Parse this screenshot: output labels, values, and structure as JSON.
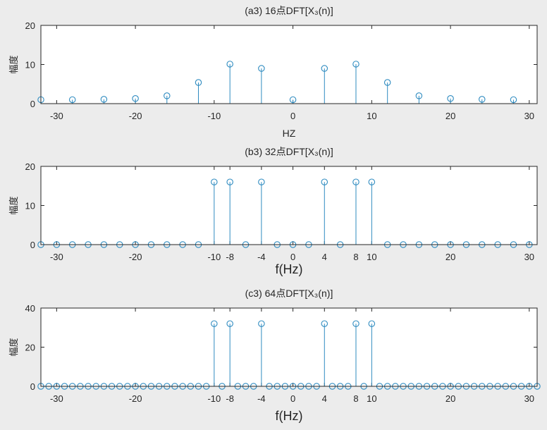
{
  "chart_data": [
    {
      "type": "stem",
      "title": "(a3)  16点DFT[X₃(n)]",
      "xlabel": "HZ",
      "ylabel": "幅度",
      "xlim": [
        -32,
        31
      ],
      "ylim": [
        0,
        20
      ],
      "yticks": [
        "0",
        "10",
        "20"
      ],
      "xticks": [
        "-30",
        "-20",
        "-10",
        "0",
        "10",
        "20",
        "30"
      ],
      "x": [
        -32,
        -28,
        -24,
        -20,
        -16,
        -12,
        -8,
        -4,
        0,
        4,
        8,
        12,
        16,
        20,
        24,
        28
      ],
      "y": [
        1.0,
        1.0,
        1.1,
        1.3,
        2.0,
        5.4,
        10.1,
        9.0,
        1.0,
        9.0,
        10.1,
        5.4,
        2.0,
        1.3,
        1.1,
        1.0
      ],
      "color": "#2e8bc0"
    },
    {
      "type": "stem",
      "title": "(b3)  32点DFT[X₃(n)]",
      "xlabel": "f(Hz)",
      "ylabel": "幅度",
      "xlim": [
        -32,
        31
      ],
      "ylim": [
        0,
        20
      ],
      "yticks": [
        "0",
        "10",
        "20"
      ],
      "xticks": [
        "-30",
        "-20",
        "-10",
        "-8",
        "-4",
        "0",
        "4",
        "8",
        "10",
        "20",
        "30"
      ],
      "x": [
        -32,
        -30,
        -28,
        -26,
        -24,
        -22,
        -20,
        -18,
        -16,
        -14,
        -12,
        -10,
        -8,
        -6,
        -4,
        -2,
        0,
        2,
        4,
        6,
        8,
        10,
        12,
        14,
        16,
        18,
        20,
        22,
        24,
        26,
        28,
        30
      ],
      "y": [
        0,
        0,
        0,
        0,
        0,
        0,
        0,
        0,
        0,
        0,
        0,
        16,
        16,
        0,
        16,
        0,
        0,
        0,
        16,
        0,
        16,
        16,
        0,
        0,
        0,
        0,
        0,
        0,
        0,
        0,
        0,
        0
      ],
      "color": "#2e8bc0"
    },
    {
      "type": "stem",
      "title": "(c3)  64点DFT[X₃(n)]",
      "xlabel": "f(Hz)",
      "ylabel": "幅度",
      "xlim": [
        -32,
        31
      ],
      "ylim": [
        0,
        40
      ],
      "yticks": [
        "0",
        "20",
        "40"
      ],
      "xticks": [
        "-30",
        "-20",
        "-10",
        "-8",
        "-4",
        "0",
        "4",
        "8",
        "10",
        "20",
        "30"
      ],
      "x": [
        -32,
        -31,
        -30,
        -29,
        -28,
        -27,
        -26,
        -25,
        -24,
        -23,
        -22,
        -21,
        -20,
        -19,
        -18,
        -17,
        -16,
        -15,
        -14,
        -13,
        -12,
        -11,
        -10,
        -9,
        -8,
        -7,
        -6,
        -5,
        -4,
        -3,
        -2,
        -1,
        0,
        1,
        2,
        3,
        4,
        5,
        6,
        7,
        8,
        9,
        10,
        11,
        12,
        13,
        14,
        15,
        16,
        17,
        18,
        19,
        20,
        21,
        22,
        23,
        24,
        25,
        26,
        27,
        28,
        29,
        30,
        31
      ],
      "y": [
        0,
        0,
        0,
        0,
        0,
        0,
        0,
        0,
        0,
        0,
        0,
        0,
        0,
        0,
        0,
        0,
        0,
        0,
        0,
        0,
        0,
        0,
        32,
        0,
        32,
        0,
        0,
        0,
        32,
        0,
        0,
        0,
        0,
        0,
        0,
        0,
        32,
        0,
        0,
        0,
        32,
        0,
        32,
        0,
        0,
        0,
        0,
        0,
        0,
        0,
        0,
        0,
        0,
        0,
        0,
        0,
        0,
        0,
        0,
        0,
        0,
        0,
        0,
        0
      ],
      "color": "#2e8bc0"
    }
  ]
}
